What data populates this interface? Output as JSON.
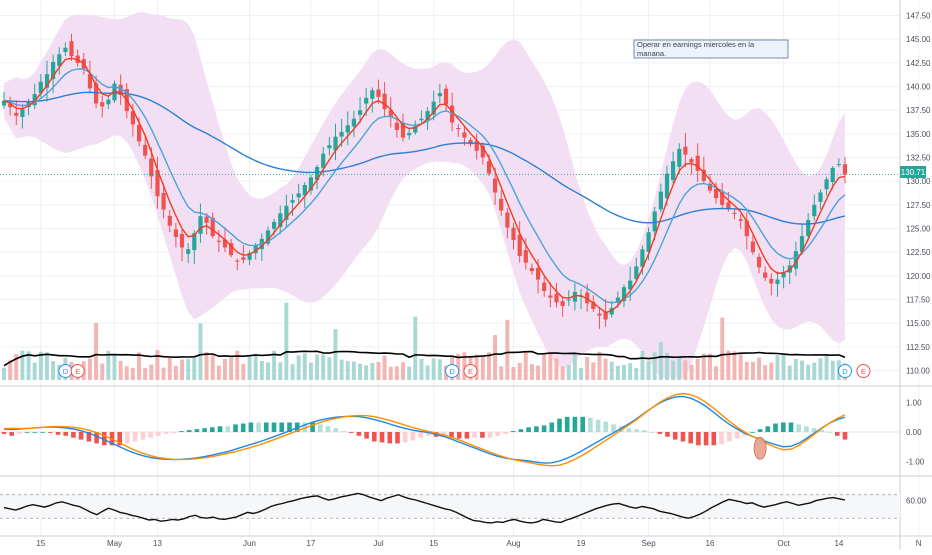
{
  "chart_data": {
    "type": "candlestick",
    "main": {
      "y_axis_ticks": [
        "147.50",
        "145.00",
        "142.50",
        "140.00",
        "137.50",
        "135.00",
        "132.50",
        "130.00",
        "127.50",
        "125.00",
        "122.50",
        "120.00",
        "117.50",
        "115.00",
        "112.50",
        "110.00"
      ],
      "ylim": [
        109,
        148.5
      ],
      "last_price": "130.71",
      "note": "Operar en earnings miercoles en la manana.",
      "event_markers": [
        {
          "label": "D",
          "index": 10,
          "color": "#2196f3"
        },
        {
          "label": "E",
          "index": 12,
          "color": "#ef5350"
        },
        {
          "label": "D",
          "index": 73,
          "color": "#2196f3"
        },
        {
          "label": "E",
          "index": 76,
          "color": "#ef5350"
        },
        {
          "label": "D",
          "index": 137,
          "color": "#2196f3"
        },
        {
          "label": "E",
          "index": 140,
          "color": "#ef5350"
        }
      ],
      "colors": {
        "up": "#26a69a",
        "down": "#ef5350",
        "band_fill": "#f2ddf2",
        "ema_fast": "#f23c1f",
        "ema_slow": "#4aa3d9",
        "long_ma": "#2a7fd4",
        "volume_ma": "#000000"
      }
    },
    "x_axis_ticks": [
      {
        "label": "15",
        "index": 6
      },
      {
        "label": "May",
        "index": 18
      },
      {
        "label": "13",
        "index": 25
      },
      {
        "label": "Jun",
        "index": 40
      },
      {
        "label": "17",
        "index": 50
      },
      {
        "label": "Jul",
        "index": 61
      },
      {
        "label": "15",
        "index": 70
      },
      {
        "label": "Aug",
        "index": 83
      },
      {
        "label": "19",
        "index": 94
      },
      {
        "label": "Sep",
        "index": 105
      },
      {
        "label": "16",
        "index": 115
      },
      {
        "label": "Oct",
        "index": 127
      },
      {
        "label": "14",
        "index": 136
      },
      {
        "label": "N",
        "index": 149
      }
    ],
    "macd": {
      "y_axis_ticks": [
        "1.00",
        "0.00",
        "-1.00"
      ],
      "ylim": [
        -1.35,
        1.35
      ],
      "colors": {
        "macd": "#1e88e5",
        "signal": "#ff8f00"
      }
    },
    "oscillator": {
      "y_axis_ticks": [
        "60.00"
      ],
      "levels": [
        70,
        30
      ],
      "ylim": [
        10,
        95
      ]
    },
    "close": [
      138.5,
      137.8,
      136.9,
      137.6,
      138.4,
      139.2,
      140.5,
      141.3,
      142.6,
      143.4,
      144.1,
      143.2,
      142.5,
      141.9,
      139.8,
      138.2,
      137.9,
      138.6,
      140.3,
      139.1,
      137.4,
      136.0,
      134.2,
      132.7,
      130.5,
      128.4,
      127.0,
      125.3,
      124.1,
      123.0,
      122.8,
      124.5,
      126.3,
      125.6,
      124.2,
      123.6,
      123.0,
      122.2,
      121.5,
      121.7,
      122.4,
      123.2,
      123.9,
      124.8,
      125.7,
      126.6,
      127.4,
      128.0,
      128.7,
      129.6,
      130.4,
      131.5,
      132.9,
      133.8,
      134.7,
      135.2,
      135.9,
      136.6,
      137.5,
      138.8,
      139.6,
      138.9,
      137.6,
      136.8,
      135.4,
      134.6,
      135.1,
      135.8,
      136.6,
      137.4,
      138.4,
      139.3,
      138.1,
      136.2,
      135.5,
      134.6,
      133.9,
      133.2,
      132.5,
      130.8,
      128.8,
      126.9,
      125.1,
      123.8,
      122.1,
      121.4,
      120.5,
      119.6,
      118.4,
      117.7,
      117.2,
      116.8,
      117.5,
      118.3,
      117.9,
      117.1,
      116.5,
      115.8,
      115.4,
      116.6,
      117.7,
      118.8,
      119.5,
      121.0,
      122.8,
      124.6,
      126.8,
      128.9,
      130.8,
      132.1,
      133.4,
      132.8,
      132.0,
      131.1,
      130.0,
      129.0,
      128.2,
      127.5,
      127.0,
      126.6,
      125.8,
      124.2,
      122.5,
      120.9,
      119.8,
      119.2,
      119.6,
      120.4,
      121.1,
      122.6,
      124.2,
      125.9,
      127.5,
      128.8,
      130.2,
      131.4,
      131.8,
      130.7
    ],
    "macd_series": [
      0.1,
      0.08,
      0.1,
      0.12,
      0.14,
      0.16,
      0.17,
      0.16,
      0.14,
      0.1,
      0.04,
      -0.04,
      -0.14,
      -0.26,
      -0.38,
      -0.5,
      -0.62,
      -0.72,
      -0.8,
      -0.86,
      -0.9,
      -0.92,
      -0.93,
      -0.92,
      -0.9,
      -0.87,
      -0.83,
      -0.78,
      -0.72,
      -0.66,
      -0.58,
      -0.5,
      -0.42,
      -0.34,
      -0.25,
      -0.16,
      -0.06,
      0.04,
      0.14,
      0.24,
      0.33,
      0.4,
      0.46,
      0.5,
      0.52,
      0.53,
      0.52,
      0.48,
      0.42,
      0.35,
      0.27,
      0.19,
      0.12,
      0.06,
      0.02,
      -0.02,
      -0.08,
      -0.15,
      -0.24,
      -0.34,
      -0.44,
      -0.54,
      -0.64,
      -0.74,
      -0.82,
      -0.88,
      -0.92,
      -0.95,
      -0.98,
      -1.02,
      -1.05,
      -1.04,
      -0.98,
      -0.88,
      -0.76,
      -0.62,
      -0.47,
      -0.32,
      -0.17,
      -0.03,
      0.12,
      0.28,
      0.45,
      0.64,
      0.82,
      0.98,
      1.1,
      1.18,
      1.2,
      1.14,
      1.02,
      0.86,
      0.66,
      0.45,
      0.26,
      0.1,
      -0.04,
      -0.15,
      -0.25,
      -0.34,
      -0.43,
      -0.5,
      -0.48,
      -0.38,
      -0.22,
      -0.04,
      0.14,
      0.3,
      0.42,
      0.5
    ],
    "signal_series": [
      0.12,
      0.12,
      0.12,
      0.12,
      0.14,
      0.16,
      0.18,
      0.19,
      0.18,
      0.16,
      0.12,
      0.06,
      -0.02,
      -0.12,
      -0.24,
      -0.36,
      -0.5,
      -0.62,
      -0.72,
      -0.8,
      -0.86,
      -0.9,
      -0.92,
      -0.93,
      -0.92,
      -0.9,
      -0.87,
      -0.83,
      -0.78,
      -0.72,
      -0.66,
      -0.59,
      -0.52,
      -0.44,
      -0.35,
      -0.26,
      -0.16,
      -0.06,
      0.04,
      0.14,
      0.23,
      0.32,
      0.4,
      0.46,
      0.51,
      0.54,
      0.56,
      0.55,
      0.52,
      0.46,
      0.39,
      0.31,
      0.23,
      0.15,
      0.08,
      0.02,
      -0.03,
      -0.1,
      -0.18,
      -0.27,
      -0.37,
      -0.48,
      -0.58,
      -0.68,
      -0.78,
      -0.86,
      -0.93,
      -0.98,
      -1.03,
      -1.08,
      -1.12,
      -1.14,
      -1.12,
      -1.04,
      -0.92,
      -0.78,
      -0.62,
      -0.45,
      -0.28,
      -0.11,
      0.06,
      0.24,
      0.42,
      0.62,
      0.82,
      1.0,
      1.15,
      1.26,
      1.3,
      1.26,
      1.16,
      1.0,
      0.8,
      0.58,
      0.36,
      0.17,
      0.0,
      -0.15,
      -0.28,
      -0.4,
      -0.52,
      -0.6,
      -0.58,
      -0.46,
      -0.28,
      -0.08,
      0.12,
      0.3,
      0.46,
      0.58
    ],
    "osc_series": [
      48,
      46,
      44,
      47,
      51,
      53,
      51,
      49,
      52,
      56,
      58,
      55,
      52,
      50,
      45,
      40,
      36,
      42,
      47,
      44,
      40,
      38,
      35,
      33,
      30,
      27,
      28,
      25,
      26,
      28,
      27,
      29,
      33,
      35,
      31,
      30,
      32,
      29,
      28,
      30,
      32,
      36,
      40,
      38,
      41,
      45,
      50,
      53,
      55,
      58,
      60,
      63,
      65,
      67,
      68,
      64,
      61,
      63,
      66,
      68,
      70,
      72,
      70,
      66,
      63,
      60,
      64,
      67,
      70,
      66,
      63,
      61,
      58,
      55,
      52,
      49,
      46,
      44,
      40,
      35,
      30,
      26,
      25,
      23,
      22,
      24,
      23,
      26,
      28,
      25,
      23,
      22,
      24,
      28,
      26,
      24,
      23,
      27,
      30,
      34,
      38,
      42,
      46,
      49,
      52,
      54,
      55,
      52,
      49,
      47,
      50,
      48,
      46,
      42,
      40,
      38,
      35,
      32,
      30,
      33,
      37,
      42,
      48,
      53,
      58,
      62,
      60,
      58,
      55,
      56,
      52,
      49,
      51,
      53,
      56,
      58,
      55,
      52,
      54,
      56,
      60,
      62,
      64,
      65,
      63,
      61
    ]
  }
}
